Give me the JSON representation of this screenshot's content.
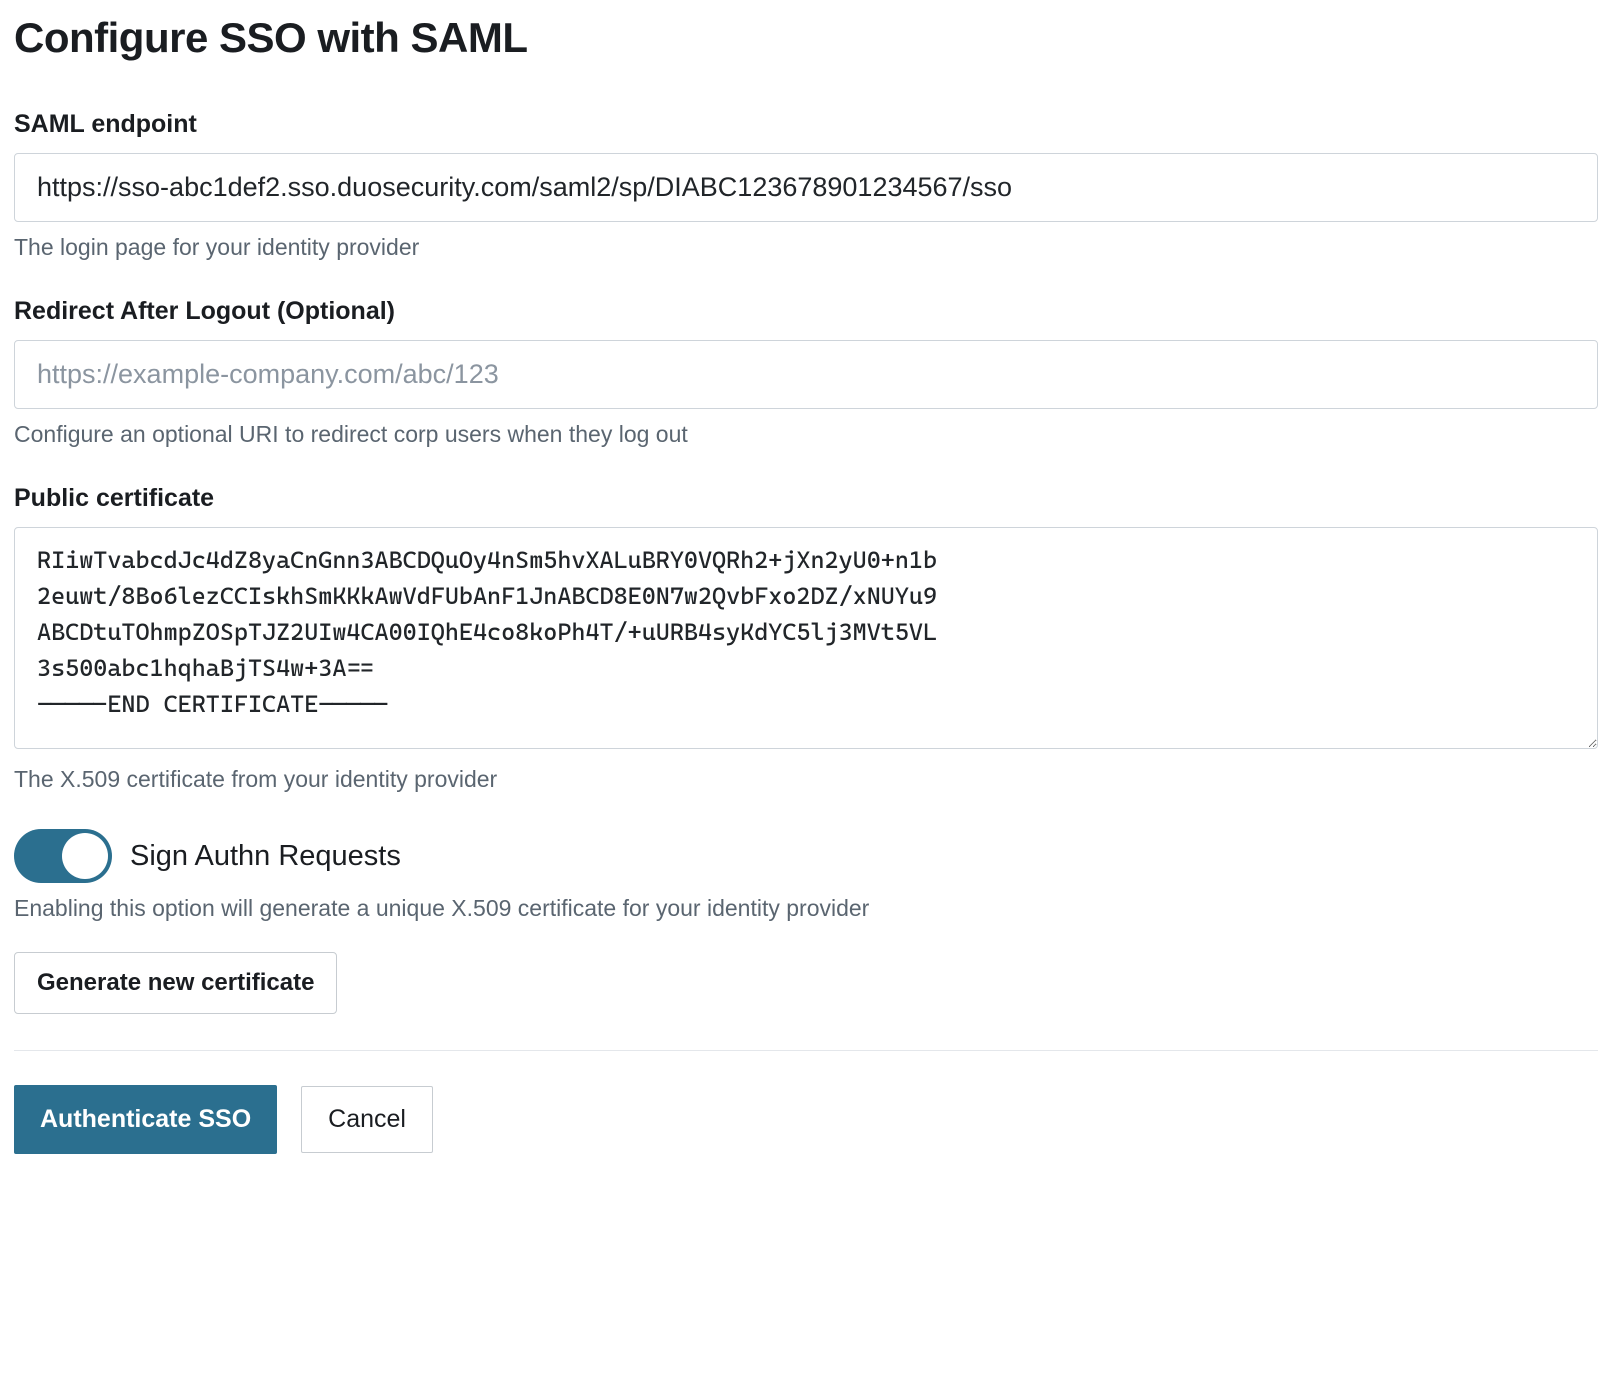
{
  "page": {
    "title": "Configure SSO with SAML"
  },
  "saml_endpoint": {
    "label": "SAML endpoint",
    "value": "https://sso-abc1def2.sso.duosecurity.com/saml2/sp/DIABC123678901234567/sso",
    "help": "The login page for your identity provider"
  },
  "redirect_logout": {
    "label": "Redirect After Logout (Optional)",
    "value": "",
    "placeholder": "https://example-company.com/abc/123",
    "help": "Configure an optional URI to redirect corp users when they log out"
  },
  "public_certificate": {
    "label": "Public certificate",
    "value": "RIiwTvabcdJc4dZ8yaCnGnn3ABCDQuOy4nSm5hvXALuBRY0VQRh2+jXn2yU0+n1b\n2euwt/8Bo6lezCCIskhSmKKkAwVdFUbAnF1JnABCD8E0N7w2QvbFxo2DZ/xNUYu9\nABCDtuTOhmpZOSpTJZ2UIw4CA00IQhE4co8koPh4T/+uURB4syKdYC5lj3MVt5VL\n3s500abc1hqhaBjTS4w+3A==\n-----END CERTIFICATE-----",
    "help": "The X.509 certificate from your identity provider"
  },
  "sign_authn": {
    "label": "Sign Authn Requests",
    "enabled": true,
    "help": "Enabling this option will generate a unique X.509 certificate for your identity provider"
  },
  "buttons": {
    "generate": "Generate new certificate",
    "authenticate": "Authenticate SSO",
    "cancel": "Cancel"
  },
  "colors": {
    "primary": "#2b6f8f",
    "text": "#1a1d21",
    "help_text": "#5a6570",
    "border": "#ced4da",
    "divider": "#e4e7eb"
  }
}
